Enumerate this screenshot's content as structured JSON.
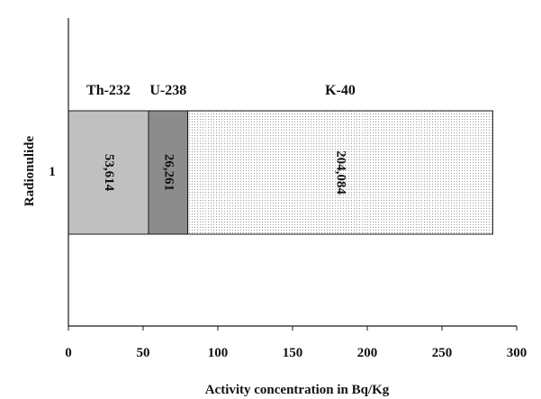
{
  "chart_data": {
    "type": "bar",
    "orientation": "horizontal",
    "stacked": true,
    "categories": [
      "1"
    ],
    "series": [
      {
        "name": "Th-232",
        "values": [
          53.614
        ],
        "value_label": "53,614",
        "color": "#c0c0c0",
        "pattern": "solid"
      },
      {
        "name": "U-238",
        "values": [
          26.261
        ],
        "value_label": "26,261",
        "color": "#8c8c8c",
        "pattern": "solid"
      },
      {
        "name": "K-40",
        "values": [
          204.084
        ],
        "value_label": "204,084",
        "color": "#ffffff",
        "pattern": "dots"
      }
    ],
    "xlabel": "Activity concentration in Bq/Kg",
    "ylabel": "Radionulide",
    "xlim": [
      0,
      300
    ],
    "xticks": [
      "0",
      "50",
      "100",
      "150",
      "200",
      "250",
      "300"
    ],
    "grid": false,
    "legend": "none"
  }
}
